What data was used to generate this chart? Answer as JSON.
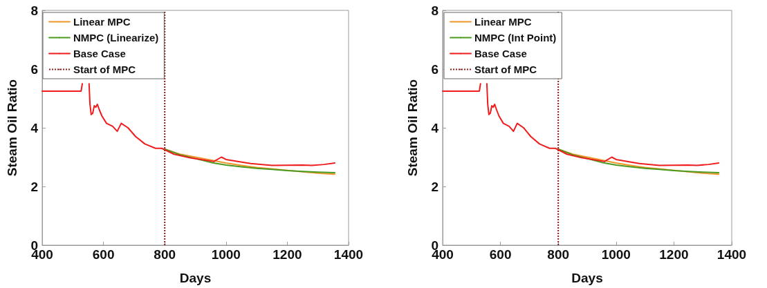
{
  "chart_data": [
    {
      "type": "line",
      "xlabel": "Days",
      "ylabel": "Steam Oil Ratio",
      "xlim": [
        400,
        1400
      ],
      "xticks": [
        400,
        600,
        800,
        1000,
        1200,
        1400
      ],
      "ylim": [
        0,
        8
      ],
      "yticks": [
        0,
        2,
        4,
        6,
        8
      ],
      "grid": false,
      "legend": "top left",
      "marker": "none",
      "series": [
        {
          "name": "Linear MPC",
          "color": "#f0952a",
          "x": [
            800,
            850,
            900,
            950,
            1000,
            1050,
            1100,
            1150,
            1200,
            1250,
            1300,
            1355
          ],
          "values": [
            3.27,
            3.1,
            3.0,
            2.9,
            2.8,
            2.72,
            2.65,
            2.6,
            2.55,
            2.5,
            2.45,
            2.42
          ]
        },
        {
          "name": "NMPC (Linearize)",
          "color": "#4a9a1e",
          "x": [
            800,
            850,
            900,
            950,
            1000,
            1050,
            1100,
            1150,
            1200,
            1250,
            1300,
            1355
          ],
          "values": [
            3.27,
            3.08,
            2.95,
            2.82,
            2.73,
            2.67,
            2.62,
            2.58,
            2.54,
            2.51,
            2.49,
            2.47
          ]
        },
        {
          "name": "Base Case",
          "color": "#ee1c1c",
          "x": [
            400,
            527,
            531,
            540,
            553,
            556,
            560,
            565,
            570,
            575,
            580,
            587,
            595,
            610,
            630,
            645,
            658,
            680,
            705,
            735,
            770,
            790,
            800,
            830,
            880,
            960,
            985,
            1000,
            1080,
            1150,
            1250,
            1280,
            1320,
            1355
          ],
          "values": [
            5.25,
            5.25,
            5.5,
            null,
            5.5,
            4.8,
            4.45,
            4.5,
            4.75,
            4.7,
            4.8,
            4.6,
            4.4,
            4.15,
            4.05,
            3.88,
            4.15,
            4.0,
            3.7,
            3.45,
            3.3,
            3.3,
            3.25,
            3.1,
            2.98,
            2.85,
            3.0,
            2.92,
            2.78,
            2.72,
            2.73,
            2.72,
            2.75,
            2.8
          ]
        }
      ],
      "ref_lines": [
        {
          "axis": "x",
          "value": 800,
          "label": "Start of MPC",
          "color": "#8b1a1a",
          "line_style": "dotted"
        }
      ]
    },
    {
      "type": "line",
      "xlabel": "Days",
      "ylabel": "Steam Oil Ratio",
      "xlim": [
        400,
        1400
      ],
      "xticks": [
        400,
        600,
        800,
        1000,
        1200,
        1400
      ],
      "ylim": [
        0,
        8
      ],
      "yticks": [
        0,
        2,
        4,
        6,
        8
      ],
      "grid": false,
      "legend": "top left",
      "marker": "none",
      "series": [
        {
          "name": "Linear MPC",
          "color": "#f0952a",
          "x": [
            800,
            850,
            900,
            950,
            1000,
            1050,
            1100,
            1150,
            1200,
            1250,
            1300,
            1355
          ],
          "values": [
            3.27,
            3.1,
            3.0,
            2.9,
            2.8,
            2.72,
            2.65,
            2.6,
            2.55,
            2.5,
            2.45,
            2.42
          ]
        },
        {
          "name": "NMPC (Int Point)",
          "color": "#4a9a1e",
          "x": [
            800,
            850,
            900,
            950,
            1000,
            1050,
            1100,
            1150,
            1200,
            1250,
            1300,
            1355
          ],
          "values": [
            3.27,
            3.08,
            2.95,
            2.82,
            2.73,
            2.67,
            2.62,
            2.58,
            2.54,
            2.51,
            2.49,
            2.47
          ]
        },
        {
          "name": "Base Case",
          "color": "#ee1c1c",
          "x": [
            400,
            527,
            531,
            540,
            553,
            556,
            560,
            565,
            570,
            575,
            580,
            587,
            595,
            610,
            630,
            645,
            658,
            680,
            705,
            735,
            770,
            790,
            800,
            830,
            880,
            960,
            985,
            1000,
            1080,
            1150,
            1250,
            1280,
            1320,
            1355
          ],
          "values": [
            5.25,
            5.25,
            5.5,
            null,
            5.5,
            4.8,
            4.45,
            4.5,
            4.75,
            4.7,
            4.8,
            4.6,
            4.4,
            4.15,
            4.05,
            3.88,
            4.15,
            4.0,
            3.7,
            3.45,
            3.3,
            3.3,
            3.25,
            3.1,
            2.98,
            2.85,
            3.0,
            2.92,
            2.78,
            2.72,
            2.73,
            2.72,
            2.75,
            2.8
          ]
        }
      ],
      "ref_lines": [
        {
          "axis": "x",
          "value": 800,
          "label": "Start of MPC",
          "color": "#8b1a1a",
          "line_style": "dotted"
        }
      ]
    }
  ]
}
